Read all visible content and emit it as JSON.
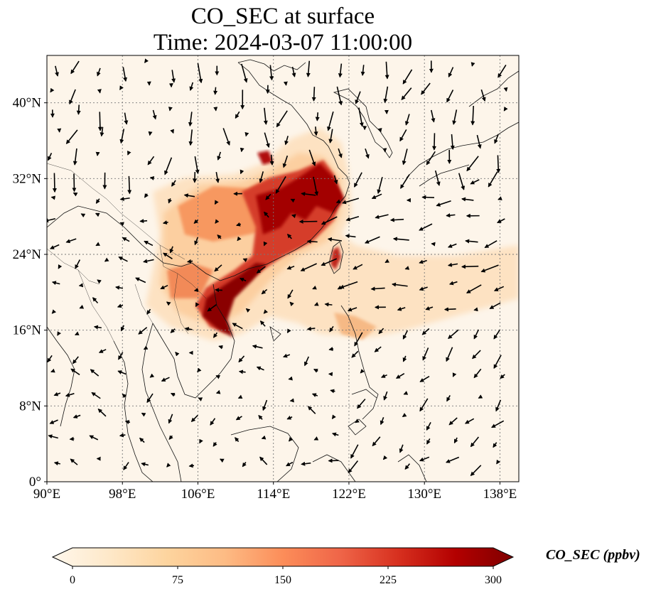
{
  "title_line1": "CO_SEC at surface",
  "title_line2": "Time: 2024-03-07 11:00:00",
  "map": {
    "lon_range": [
      90,
      140
    ],
    "lat_range": [
      0,
      45
    ],
    "lat_ticks": [
      {
        "value": 0,
        "label": "0°"
      },
      {
        "value": 8,
        "label": "8°N"
      },
      {
        "value": 16,
        "label": "16°N"
      },
      {
        "value": 24,
        "label": "24°N"
      },
      {
        "value": 32,
        "label": "32°N"
      },
      {
        "value": 40,
        "label": "40°N"
      }
    ],
    "lon_ticks": [
      {
        "value": 90,
        "label": "90°E"
      },
      {
        "value": 98,
        "label": "98°E"
      },
      {
        "value": 106,
        "label": "106°E"
      },
      {
        "value": 114,
        "label": "114°E"
      },
      {
        "value": 122,
        "label": "122°E"
      },
      {
        "value": 130,
        "label": "130°E"
      },
      {
        "value": 138,
        "label": "138°E"
      }
    ],
    "gridlines": true
  },
  "colorbar": {
    "label": "CO_SEC (ppbv)",
    "colormap": "OrRd",
    "range": [
      0,
      300
    ],
    "ticks": [
      "0",
      "75",
      "150",
      "225",
      "300"
    ],
    "extend": "both",
    "colors": [
      "#fff7ec",
      "#fee8c8",
      "#fdd49e",
      "#fdbb84",
      "#fc8d59",
      "#ef6548",
      "#d7301f",
      "#b30000",
      "#7f0000"
    ]
  }
}
